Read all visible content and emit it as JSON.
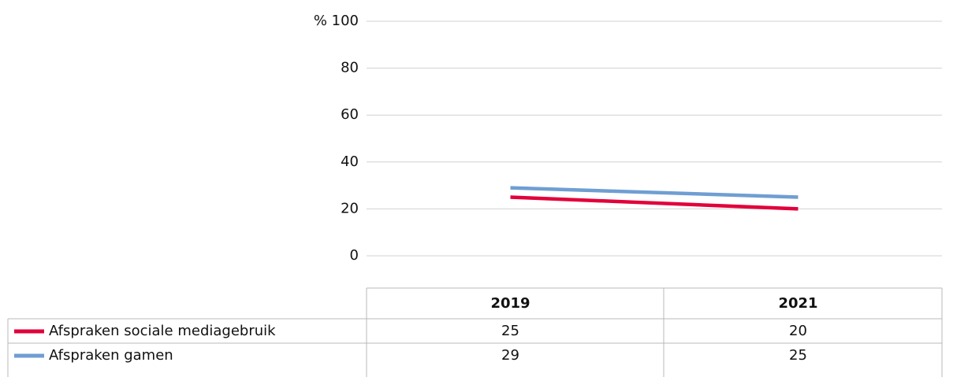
{
  "chart_data": {
    "type": "line",
    "categories": [
      "2019",
      "2021"
    ],
    "series": [
      {
        "name": "Afspraken sociale mediagebruik",
        "color": "#e2003b",
        "values": [
          25,
          20
        ]
      },
      {
        "name": "Afspraken gamen",
        "color": "#6f9ed2",
        "values": [
          29,
          25
        ]
      }
    ],
    "ylim": [
      0,
      100
    ],
    "yticks": [
      0,
      20,
      40,
      60,
      80,
      {
        "value": 100,
        "label": "% 100"
      }
    ],
    "grid": true
  }
}
